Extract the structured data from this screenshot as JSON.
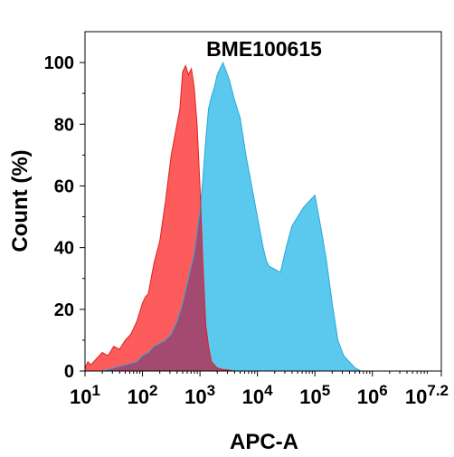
{
  "chart_data": {
    "type": "area",
    "title": "BME100615",
    "xlabel": "APC-A",
    "ylabel": "Count (%)",
    "x_scale": "log10",
    "xlim": [
      1,
      7.2
    ],
    "ylim": [
      0,
      110
    ],
    "x_ticks": [
      {
        "value": 1,
        "base": "10",
        "exp": "1"
      },
      {
        "value": 2,
        "base": "10",
        "exp": "2"
      },
      {
        "value": 3,
        "base": "10",
        "exp": "3"
      },
      {
        "value": 4,
        "base": "10",
        "exp": "4"
      },
      {
        "value": 5,
        "base": "10",
        "exp": "5"
      },
      {
        "value": 6,
        "base": "10",
        "exp": "6"
      },
      {
        "value": 7.2,
        "base": "10",
        "exp": "7.2"
      }
    ],
    "y_ticks": [
      "0",
      "20",
      "40",
      "60",
      "80",
      "100"
    ],
    "grid": false,
    "series": [
      {
        "color": "#fc5c5c",
        "x": [
          1.0,
          1.05,
          1.1,
          1.2,
          1.3,
          1.4,
          1.5,
          1.6,
          1.7,
          1.8,
          1.9,
          2.0,
          2.05,
          2.1,
          2.2,
          2.3,
          2.4,
          2.5,
          2.6,
          2.65,
          2.7,
          2.75,
          2.8,
          2.85,
          2.9,
          2.95,
          3.0,
          3.05,
          3.1,
          3.15,
          3.2,
          3.25,
          3.3,
          3.4,
          3.5,
          3.6
        ],
        "y": [
          1,
          3,
          2,
          4,
          6,
          5,
          8,
          7,
          10,
          12,
          16,
          22,
          24,
          25,
          35,
          42,
          55,
          70,
          80,
          85,
          97,
          99,
          96,
          98,
          92,
          80,
          60,
          35,
          15,
          8,
          3,
          2,
          1,
          0.5,
          0.3,
          0
        ]
      },
      {
        "color": "#5bc8ee",
        "x": [
          1.3,
          1.5,
          1.7,
          1.9,
          2.0,
          2.1,
          2.2,
          2.3,
          2.4,
          2.5,
          2.6,
          2.7,
          2.8,
          2.9,
          3.0,
          3.05,
          3.1,
          3.15,
          3.2,
          3.25,
          3.3,
          3.35,
          3.4,
          3.5,
          3.6,
          3.7,
          3.8,
          3.9,
          4.0,
          4.1,
          4.15,
          4.2,
          4.3,
          4.4,
          4.5,
          4.6,
          4.7,
          4.8,
          4.9,
          5.0,
          5.1,
          5.2,
          5.3,
          5.4,
          5.5,
          5.6,
          5.7,
          5.8
        ],
        "y": [
          0,
          1,
          2,
          3,
          5,
          6,
          8,
          9,
          10,
          12,
          16,
          22,
          30,
          38,
          52,
          62,
          75,
          85,
          89,
          92,
          96,
          98,
          100,
          95,
          88,
          82,
          70,
          60,
          50,
          40,
          36,
          34,
          33,
          32,
          40,
          47,
          50,
          53,
          55,
          57,
          47,
          36,
          22,
          10,
          5,
          3,
          1,
          0
        ]
      }
    ],
    "overlap_color": "#a44a70"
  }
}
